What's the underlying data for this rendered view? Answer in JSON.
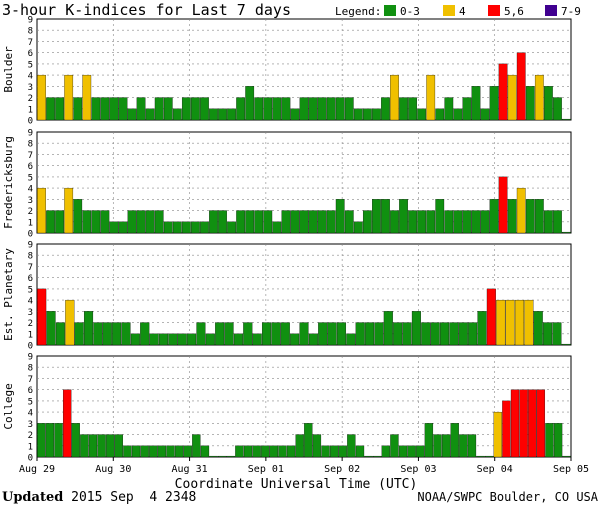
{
  "chart_data": {
    "type": "bar",
    "title": "3-hour K-indices for Last 7 days",
    "legend": {
      "label": "Legend:",
      "entries": [
        {
          "label": "0-3",
          "color": "#109010"
        },
        {
          "label": "4",
          "color": "#f0c000"
        },
        {
          "label": "5,6",
          "color": "#ff0000"
        },
        {
          "label": "7-9",
          "color": "#400090"
        }
      ],
      "placement": "top-right"
    },
    "xlabel": "Coordinate Universal Time (UTC)",
    "x_ticks": [
      "Aug 29",
      "Aug 30",
      "Aug 31",
      "Sep 01",
      "Sep 02",
      "Sep 03",
      "Sep 04",
      "Sep 05"
    ],
    "ylim": [
      0,
      9
    ],
    "y_ticks": [
      "0",
      "1",
      "2",
      "3",
      "4",
      "5",
      "6",
      "7",
      "8",
      "9"
    ],
    "grid": true,
    "series": [
      {
        "name": "Boulder",
        "values": [
          4,
          2,
          2,
          4,
          2,
          4,
          2,
          2,
          2,
          2,
          1,
          2,
          1,
          2,
          2,
          1,
          2,
          2,
          2,
          1,
          1,
          1,
          2,
          3,
          2,
          2,
          2,
          2,
          1,
          2,
          2,
          2,
          2,
          2,
          2,
          1,
          1,
          1,
          2,
          4,
          2,
          2,
          1,
          4,
          1,
          2,
          1,
          2,
          3,
          1,
          3,
          5,
          4,
          6,
          3,
          4,
          3,
          2,
          0
        ]
      },
      {
        "name": "Fredericksburg",
        "values": [
          4,
          2,
          2,
          4,
          3,
          2,
          2,
          2,
          1,
          1,
          2,
          2,
          2,
          2,
          1,
          1,
          1,
          1,
          1,
          2,
          2,
          1,
          2,
          2,
          2,
          2,
          1,
          2,
          2,
          2,
          2,
          2,
          2,
          3,
          2,
          1,
          2,
          3,
          3,
          2,
          3,
          2,
          2,
          2,
          3,
          2,
          2,
          2,
          2,
          2,
          3,
          5,
          3,
          4,
          3,
          3,
          2,
          2,
          0
        ]
      },
      {
        "name": "Est. Planetary",
        "values": [
          5,
          3,
          2,
          4,
          2,
          3,
          2,
          2,
          2,
          2,
          1,
          2,
          1,
          1,
          1,
          1,
          1,
          2,
          1,
          2,
          2,
          1,
          2,
          1,
          2,
          2,
          2,
          1,
          2,
          1,
          2,
          2,
          2,
          1,
          2,
          2,
          2,
          3,
          2,
          2,
          3,
          2,
          2,
          2,
          2,
          2,
          2,
          3,
          5,
          4,
          4,
          4,
          4,
          3,
          2,
          2,
          0
        ]
      },
      {
        "name": "College",
        "values": [
          3,
          3,
          3,
          6,
          3,
          2,
          2,
          2,
          2,
          2,
          1,
          1,
          1,
          1,
          1,
          1,
          1,
          1,
          2,
          1,
          0,
          0,
          0,
          1,
          1,
          1,
          1,
          1,
          1,
          1,
          2,
          3,
          2,
          1,
          1,
          1,
          2,
          1,
          0,
          0,
          1,
          2,
          1,
          1,
          1,
          3,
          2,
          2,
          3,
          2,
          2,
          0,
          0,
          4,
          5,
          6,
          6,
          6,
          6,
          3,
          3,
          0
        ]
      }
    ]
  },
  "footer": {
    "updated_label": "Updated",
    "updated_value": " 2015 Sep  4 2348",
    "credit": "NOAA/SWPC Boulder, CO USA"
  }
}
